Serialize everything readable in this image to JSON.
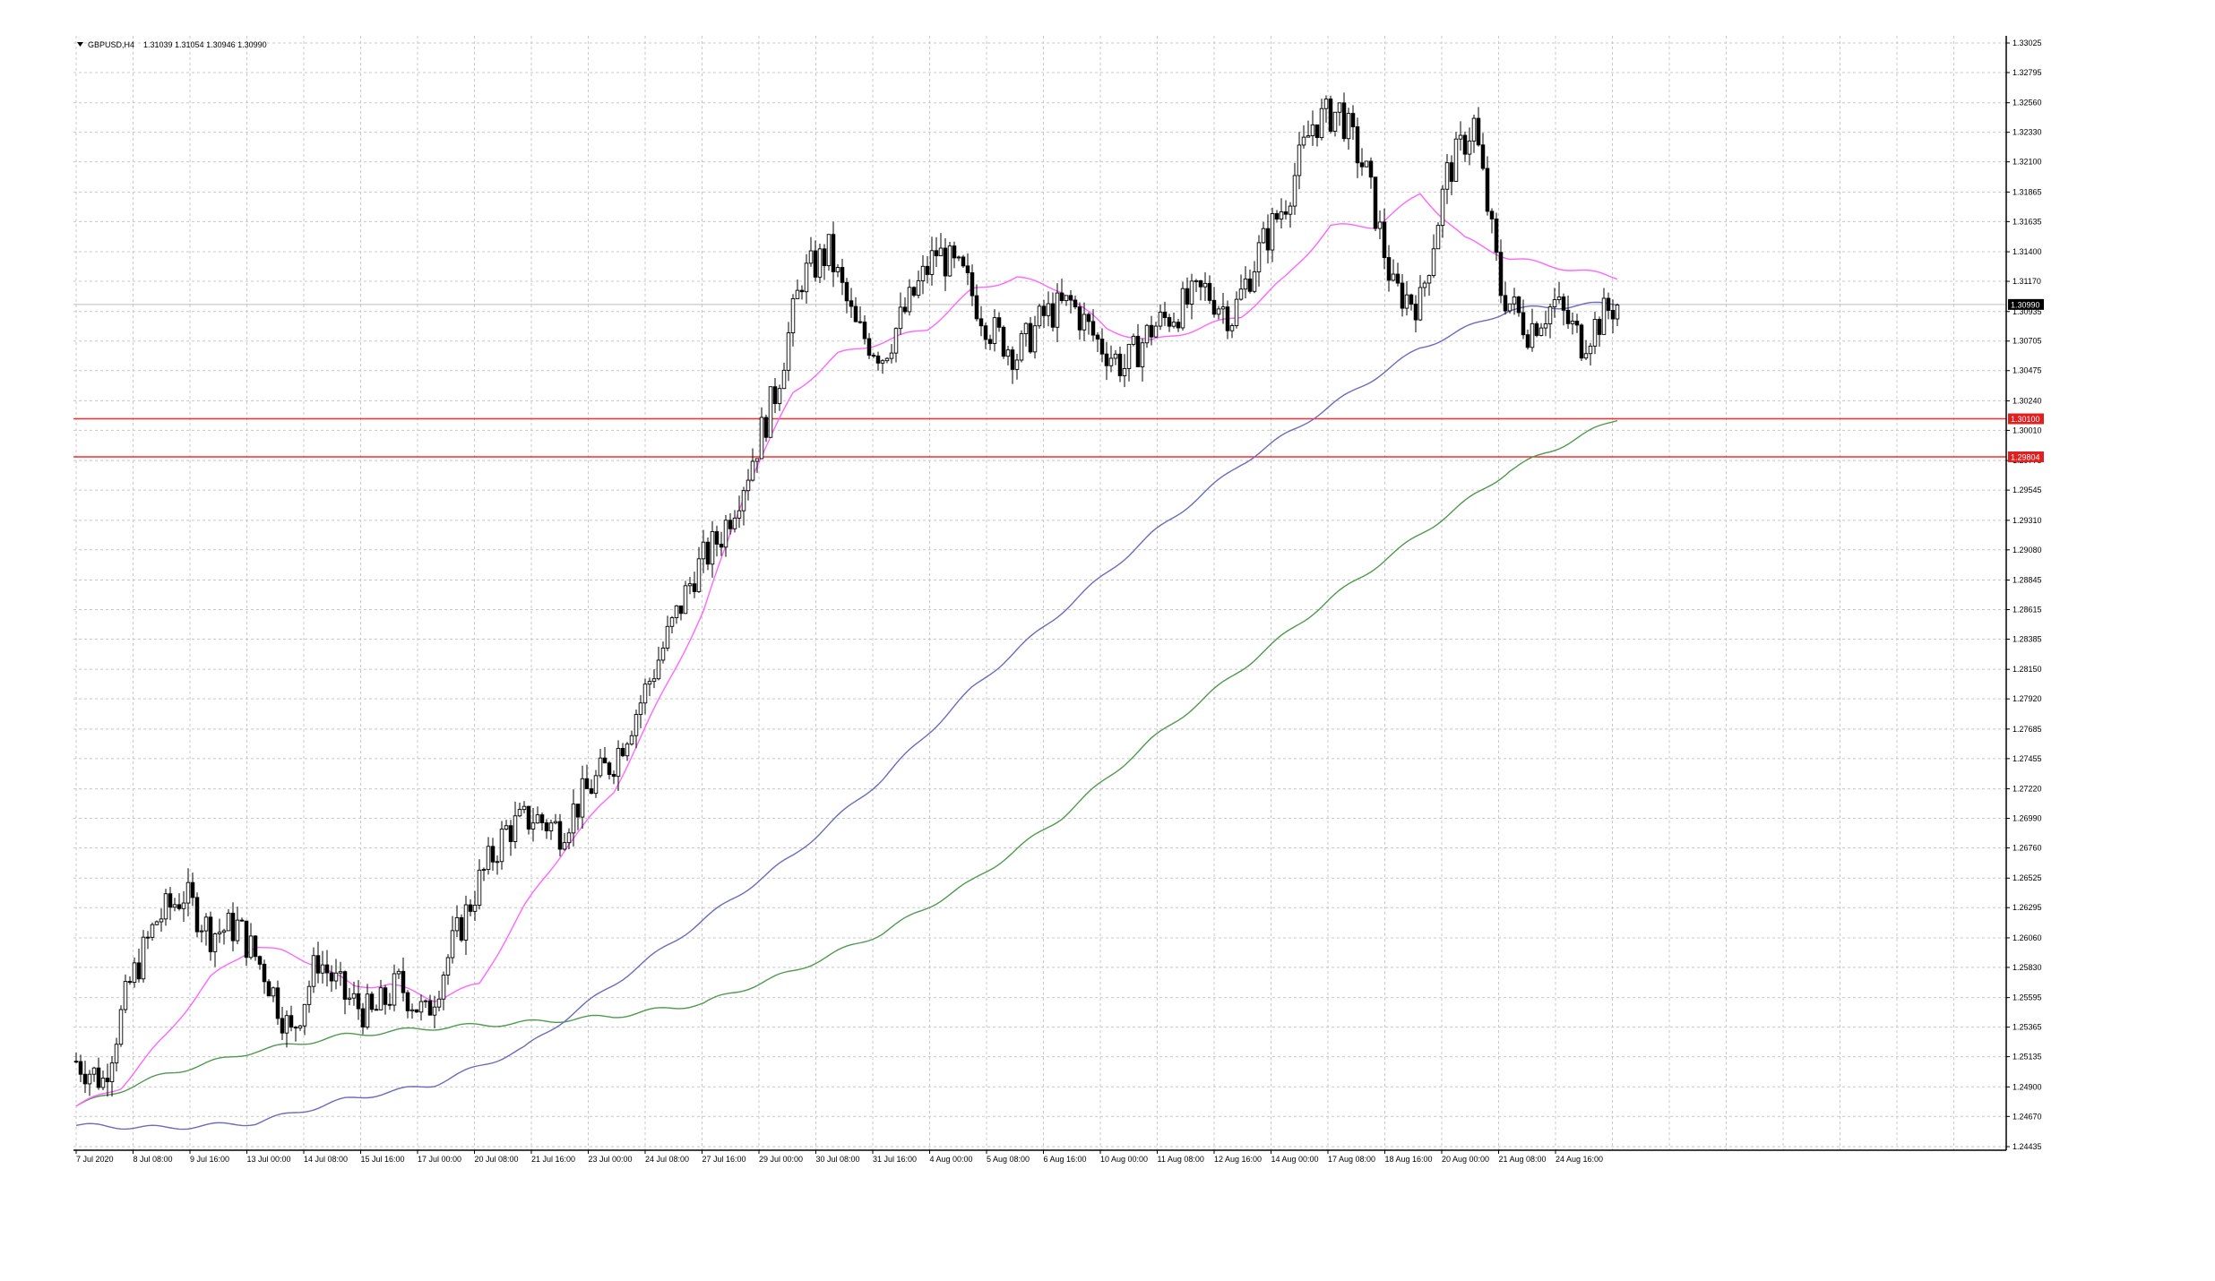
{
  "header": {
    "symbol": "GBPUSD,H4",
    "ohlc": "1.31039 1.31054 1.30946 1.30990"
  },
  "colors": {
    "background": "#ffffff",
    "grid": "#c8c8c8",
    "candle": "#000000",
    "ma_fast": "#ff66ff",
    "ma_mid": "#6b6bbf",
    "ma_slow": "#4f9a4f",
    "hline": "#ff2a2a",
    "current_price_bg": "#000000",
    "level_bg": "#e02020"
  },
  "chart_data": {
    "type": "candlestick",
    "timeframe": "H4",
    "ylim": [
      1.24435,
      1.33025
    ],
    "y_ticks": [
      "1.33025",
      "1.32795",
      "1.32560",
      "1.32330",
      "1.32100",
      "1.31865",
      "1.31635",
      "1.31400",
      "1.31170",
      "1.30935",
      "1.30705",
      "1.30475",
      "1.30240",
      "1.30010",
      "1.29775",
      "1.29545",
      "1.29310",
      "1.29080",
      "1.28845",
      "1.28615",
      "1.28385",
      "1.28150",
      "1.27920",
      "1.27685",
      "1.27455",
      "1.27220",
      "1.26990",
      "1.26760",
      "1.26525",
      "1.26295",
      "1.26060",
      "1.25830",
      "1.25595",
      "1.25365",
      "1.25135",
      "1.24900",
      "1.24670",
      "1.24435"
    ],
    "x_ticks": [
      "7 Jul 2020",
      "8 Jul 08:00",
      "9 Jul 16:00",
      "13 Jul 00:00",
      "14 Jul 08:00",
      "15 Jul 16:00",
      "17 Jul 00:00",
      "20 Jul 08:00",
      "21 Jul 16:00",
      "23 Jul 00:00",
      "24 Jul 08:00",
      "27 Jul 16:00",
      "29 Jul 00:00",
      "30 Jul 08:00",
      "31 Jul 16:00",
      "4 Aug 00:00",
      "5 Aug 08:00",
      "6 Aug 16:00",
      "10 Aug 00:00",
      "11 Aug 08:00",
      "12 Aug 16:00",
      "14 Aug 00:00",
      "17 Aug 08:00",
      "18 Aug 16:00",
      "20 Aug 00:00",
      "21 Aug 08:00",
      "24 Aug 16:00"
    ],
    "current_price": "1.30990",
    "horizontal_levels": [
      {
        "label": "1.30100",
        "value": 1.301
      },
      {
        "label": "1.29804",
        "value": 1.29804
      }
    ],
    "close_path": [
      [
        0,
        1.251
      ],
      [
        6,
        1.2495
      ],
      [
        12,
        1.257
      ],
      [
        18,
        1.262
      ],
      [
        24,
        1.264
      ],
      [
        30,
        1.261
      ],
      [
        36,
        1.2615
      ],
      [
        42,
        1.258
      ],
      [
        48,
        1.253
      ],
      [
        54,
        1.259
      ],
      [
        60,
        1.256
      ],
      [
        66,
        1.2545
      ],
      [
        72,
        1.257
      ],
      [
        78,
        1.2545
      ],
      [
        84,
        1.26
      ],
      [
        90,
        1.265
      ],
      [
        96,
        1.269
      ],
      [
        102,
        1.27
      ],
      [
        108,
        1.269
      ],
      [
        114,
        1.272
      ],
      [
        120,
        1.2745
      ],
      [
        126,
        1.279
      ],
      [
        132,
        1.284
      ],
      [
        138,
        1.289
      ],
      [
        144,
        1.292
      ],
      [
        150,
        1.297
      ],
      [
        156,
        1.303
      ],
      [
        162,
        1.312
      ],
      [
        168,
        1.314
      ],
      [
        174,
        1.308
      ],
      [
        180,
        1.306
      ],
      [
        186,
        1.31
      ],
      [
        192,
        1.314
      ],
      [
        198,
        1.312
      ],
      [
        204,
        1.308
      ],
      [
        210,
        1.306
      ],
      [
        216,
        1.309
      ],
      [
        222,
        1.31
      ],
      [
        228,
        1.307
      ],
      [
        234,
        1.305
      ],
      [
        240,
        1.308
      ],
      [
        246,
        1.3095
      ],
      [
        252,
        1.311
      ],
      [
        258,
        1.309
      ],
      [
        264,
        1.314
      ],
      [
        270,
        1.318
      ],
      [
        276,
        1.324
      ],
      [
        282,
        1.325
      ],
      [
        288,
        1.32
      ],
      [
        294,
        1.311
      ],
      [
        300,
        1.31
      ],
      [
        306,
        1.32
      ],
      [
        312,
        1.324
      ],
      [
        318,
        1.311
      ],
      [
        324,
        1.308
      ],
      [
        330,
        1.31
      ],
      [
        336,
        1.307
      ],
      [
        342,
        1.3095
      ],
      [
        344,
        1.3099
      ]
    ],
    "ma_fast_path": [
      [
        0,
        1.2475
      ],
      [
        10,
        1.249
      ],
      [
        20,
        1.253
      ],
      [
        30,
        1.2575
      ],
      [
        40,
        1.26
      ],
      [
        46,
        1.2595
      ],
      [
        54,
        1.2585
      ],
      [
        62,
        1.2568
      ],
      [
        70,
        1.257
      ],
      [
        80,
        1.2558
      ],
      [
        90,
        1.257
      ],
      [
        100,
        1.263
      ],
      [
        110,
        1.268
      ],
      [
        120,
        1.272
      ],
      [
        130,
        1.279
      ],
      [
        140,
        1.286
      ],
      [
        150,
        1.296
      ],
      [
        160,
        1.303
      ],
      [
        170,
        1.306
      ],
      [
        180,
        1.307
      ],
      [
        190,
        1.308
      ],
      [
        200,
        1.311
      ],
      [
        210,
        1.312
      ],
      [
        220,
        1.311
      ],
      [
        230,
        1.308
      ],
      [
        240,
        1.307
      ],
      [
        250,
        1.308
      ],
      [
        260,
        1.309
      ],
      [
        270,
        1.312
      ],
      [
        280,
        1.316
      ],
      [
        290,
        1.316
      ],
      [
        300,
        1.3185
      ],
      [
        310,
        1.315
      ],
      [
        320,
        1.3135
      ],
      [
        344,
        1.312
      ]
    ],
    "ma_mid_path": [
      [
        0,
        1.246
      ],
      [
        20,
        1.2458
      ],
      [
        40,
        1.2462
      ],
      [
        60,
        1.248
      ],
      [
        80,
        1.2492
      ],
      [
        100,
        1.252
      ],
      [
        120,
        1.257
      ],
      [
        140,
        1.262
      ],
      [
        160,
        1.267
      ],
      [
        180,
        1.273
      ],
      [
        200,
        1.28
      ],
      [
        220,
        1.286
      ],
      [
        240,
        1.292
      ],
      [
        260,
        1.2975
      ],
      [
        280,
        1.302
      ],
      [
        300,
        1.3065
      ],
      [
        320,
        1.3095
      ],
      [
        344,
        1.31
      ]
    ],
    "ma_slow_path": [
      [
        0,
        1.2475
      ],
      [
        20,
        1.25
      ],
      [
        40,
        1.2518
      ],
      [
        60,
        1.253
      ],
      [
        80,
        1.2536
      ],
      [
        100,
        1.254
      ],
      [
        120,
        1.2545
      ],
      [
        140,
        1.2555
      ],
      [
        160,
        1.258
      ],
      [
        180,
        1.261
      ],
      [
        200,
        1.265
      ],
      [
        220,
        1.27
      ],
      [
        240,
        1.276
      ],
      [
        260,
        1.2815
      ],
      [
        280,
        1.287
      ],
      [
        300,
        1.292
      ],
      [
        320,
        1.297
      ],
      [
        344,
        1.301
      ]
    ]
  }
}
